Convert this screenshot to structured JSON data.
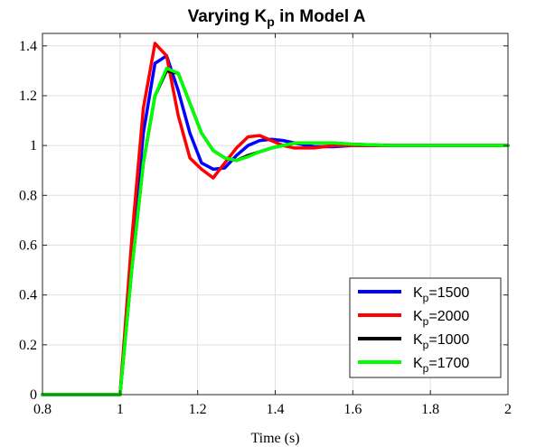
{
  "chart_data": {
    "type": "line",
    "title": "Varying K",
    "title_sub": "p",
    "title_rest": " in Model A",
    "xlabel": "Time (s)",
    "ylabel": "",
    "xlim": [
      0.8,
      2.0
    ],
    "ylim": [
      0,
      1.45
    ],
    "xticks": [
      0.8,
      1.0,
      1.2,
      1.4,
      1.6,
      1.8,
      2.0
    ],
    "xtick_labels": [
      "0.8",
      "1",
      "1.2",
      "1.4",
      "1.6",
      "1.8",
      "2"
    ],
    "yticks": [
      0,
      0.2,
      0.4,
      0.6,
      0.8,
      1.0,
      1.2,
      1.4
    ],
    "ytick_labels": [
      "0",
      "0.2",
      "0.4",
      "0.6",
      "0.8",
      "1",
      "1.2",
      "1.4"
    ],
    "grid": true,
    "legend_position": "bottom-right",
    "legend_prefix": "K",
    "legend_sub": "p",
    "series": [
      {
        "name": "K_p=1500",
        "label_rest": "=1500",
        "color": "#0000ff",
        "x": [
          0.8,
          1.0,
          1.03,
          1.06,
          1.09,
          1.12,
          1.15,
          1.18,
          1.21,
          1.24,
          1.27,
          1.3,
          1.33,
          1.36,
          1.39,
          1.42,
          1.45,
          1.5,
          1.55,
          1.6,
          1.7,
          1.8,
          1.9,
          2.0
        ],
        "y": [
          0,
          0,
          0.55,
          1.05,
          1.33,
          1.36,
          1.22,
          1.05,
          0.93,
          0.905,
          0.91,
          0.96,
          1.0,
          1.02,
          1.025,
          1.02,
          1.01,
          0.995,
          0.995,
          1.0,
          1.0,
          1.0,
          1.0,
          1.0
        ]
      },
      {
        "name": "K_p=2000",
        "label_rest": "=2000",
        "color": "#ff0000",
        "x": [
          0.8,
          1.0,
          1.03,
          1.06,
          1.09,
          1.12,
          1.15,
          1.18,
          1.21,
          1.24,
          1.27,
          1.3,
          1.33,
          1.36,
          1.39,
          1.42,
          1.45,
          1.5,
          1.55,
          1.6,
          1.7,
          1.8,
          1.9,
          2.0
        ],
        "y": [
          0,
          0,
          0.62,
          1.15,
          1.41,
          1.36,
          1.12,
          0.95,
          0.905,
          0.87,
          0.93,
          0.99,
          1.035,
          1.04,
          1.02,
          1.0,
          0.99,
          0.99,
          1.0,
          1.0,
          1.0,
          1.0,
          1.0,
          1.0
        ]
      },
      {
        "name": "K_p=1000",
        "label_rest": "=1000",
        "color": "#000000",
        "x": [
          0.8,
          1.0,
          1.03,
          1.06,
          1.09,
          1.12,
          1.15,
          1.18,
          1.21,
          1.24,
          1.27,
          1.3,
          1.33,
          1.36,
          1.39,
          1.42,
          1.45,
          1.5,
          1.55,
          1.6,
          1.7,
          1.8,
          1.9,
          2.0
        ],
        "y": [
          0,
          0,
          0.5,
          0.93,
          1.2,
          1.3,
          1.29,
          1.17,
          1.05,
          0.98,
          0.95,
          0.94,
          0.96,
          0.975,
          0.99,
          1.0,
          1.01,
          1.01,
          1.01,
          1.005,
          1.0,
          1.0,
          1.0,
          1.0
        ]
      },
      {
        "name": "K_p=1700",
        "label_rest": "=1700",
        "color": "#00ff00",
        "x": [
          0.8,
          1.0,
          1.03,
          1.06,
          1.09,
          1.12,
          1.15,
          1.18,
          1.21,
          1.24,
          1.27,
          1.3,
          1.33,
          1.36,
          1.39,
          1.42,
          1.45,
          1.5,
          1.55,
          1.6,
          1.7,
          1.8,
          1.9,
          2.0
        ],
        "y": [
          0,
          0,
          0.5,
          0.93,
          1.2,
          1.31,
          1.29,
          1.17,
          1.05,
          0.98,
          0.95,
          0.94,
          0.955,
          0.975,
          0.99,
          1.0,
          1.01,
          1.01,
          1.01,
          1.005,
          1.0,
          1.0,
          1.0,
          1.0
        ]
      }
    ]
  }
}
